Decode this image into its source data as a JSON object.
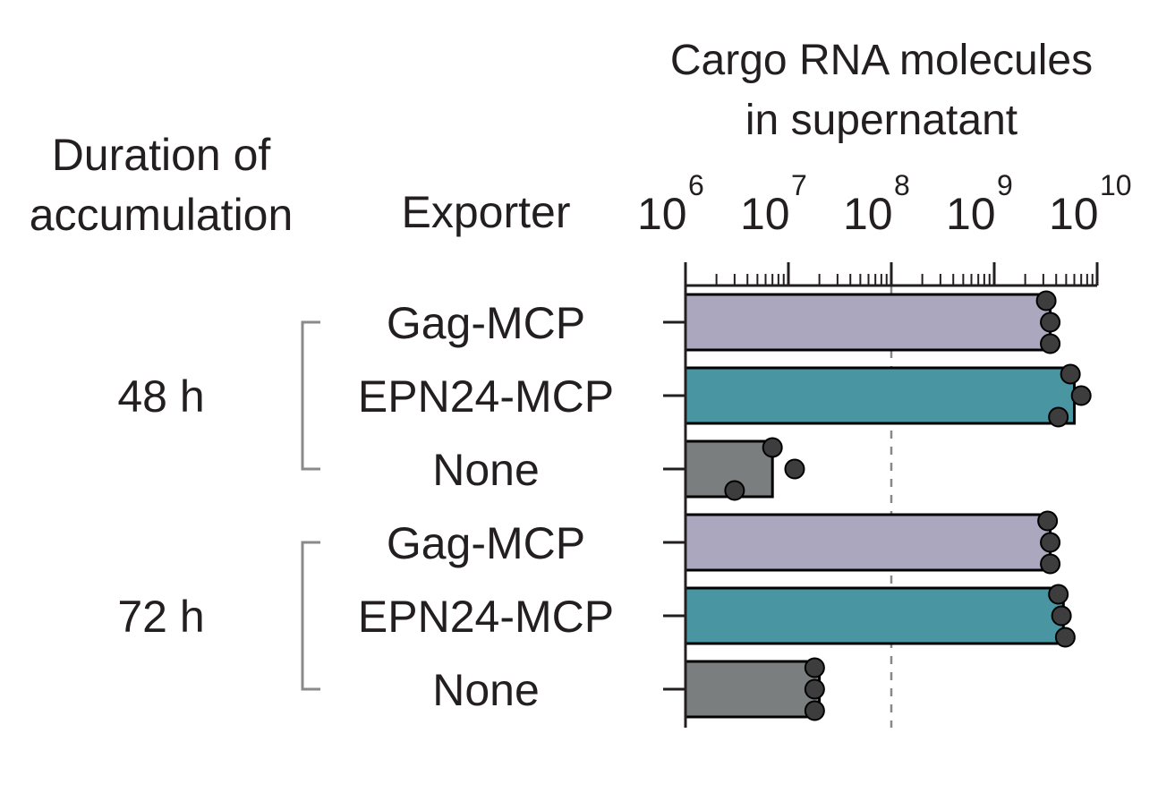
{
  "chart_data": {
    "type": "bar",
    "orientation": "horizontal",
    "title_lines": [
      "Cargo RNA molecules",
      "in supernatant"
    ],
    "group_header_lines": [
      "Duration of",
      "accumulation"
    ],
    "category_header": "Exporter",
    "x_scale": "log",
    "xlim": [
      1000000,
      10000000000
    ],
    "x_ticks": [
      {
        "base": "10",
        "exp": "6",
        "value": 1000000
      },
      {
        "base": "10",
        "exp": "7",
        "value": 10000000
      },
      {
        "base": "10",
        "exp": "8",
        "value": 100000000
      },
      {
        "base": "10",
        "exp": "9",
        "value": 1000000000
      },
      {
        "base": "10",
        "exp": "10",
        "value": 10000000000
      }
    ],
    "reference_line": 100000000,
    "groups": [
      {
        "label": "48 h",
        "rows": [
          {
            "exporter": "Gag-MCP",
            "value": 3500000000,
            "color": "#aba7bf",
            "points": [
              3200000000,
              3500000000,
              3500000000
            ]
          },
          {
            "exporter": "EPN24-MCP",
            "value": 6000000000,
            "color": "#4a95a2",
            "points": [
              5500000000,
              7000000000,
              4200000000
            ]
          },
          {
            "exporter": "None",
            "value": 7000000,
            "color": "#7b7e7e",
            "points": [
              7000000,
              11500000,
              3000000
            ]
          }
        ]
      },
      {
        "label": "72 h",
        "rows": [
          {
            "exporter": "Gag-MCP",
            "value": 3500000000,
            "color": "#aba7bf",
            "points": [
              3300000000,
              3500000000,
              3500000000
            ]
          },
          {
            "exporter": "EPN24-MCP",
            "value": 4700000000,
            "color": "#4a95a2",
            "points": [
              4200000000,
              4500000000,
              4900000000
            ]
          },
          {
            "exporter": "None",
            "value": 20000000,
            "color": "#7b7e7e",
            "points": [
              18000000,
              18000000,
              18000000
            ]
          }
        ]
      }
    ]
  }
}
